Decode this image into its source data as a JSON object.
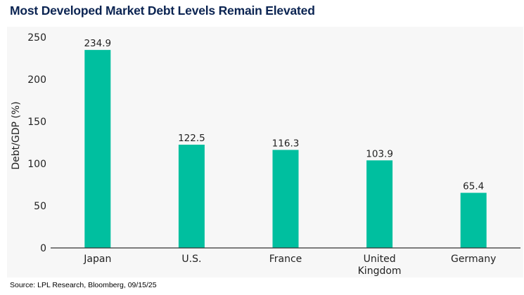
{
  "header": {
    "title": "Most Developed Market Debt Levels Remain Elevated"
  },
  "footer": {
    "source": "Source: LPL Research, Bloomberg, 09/15/25"
  },
  "colors": {
    "bar": "#00bf9f",
    "title": "#0b2452",
    "panel_bg": "#f7f7f7",
    "axis": "#333333"
  },
  "chart_data": {
    "type": "bar",
    "title": "Most Developed Market Debt Levels Remain Elevated",
    "xlabel": "",
    "ylabel": "Debt/GDP (%)",
    "ylim": [
      0,
      250
    ],
    "yticks": [
      0,
      50,
      100,
      150,
      200,
      250
    ],
    "grid": false,
    "categories": [
      [
        "Japan"
      ],
      [
        "U.S."
      ],
      [
        "France"
      ],
      [
        "United",
        "Kingdom"
      ],
      [
        "Germany"
      ]
    ],
    "values": [
      234.9,
      122.5,
      116.3,
      103.9,
      65.4
    ],
    "data_labels": [
      "234.9",
      "122.5",
      "116.3",
      "103.9",
      "65.4"
    ]
  }
}
